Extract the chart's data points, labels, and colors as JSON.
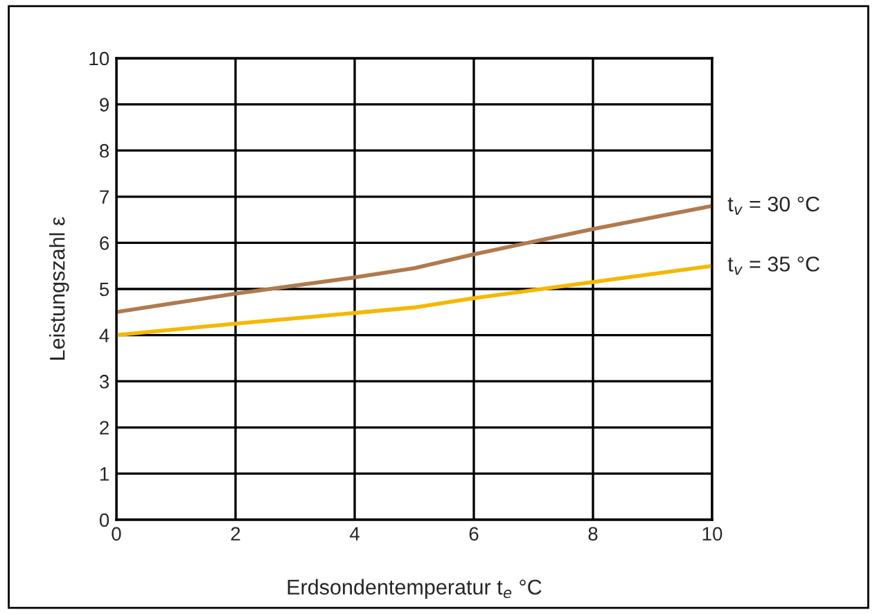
{
  "chart_data": {
    "type": "line",
    "xlabel": "Erdsondentemperatur t$_{e}$ °C",
    "ylabel": "Leistungszahl ε",
    "x": [
      0,
      2,
      4,
      5,
      6,
      8,
      10
    ],
    "series": [
      {
        "name": "t$_{v}$ = 30 °C",
        "color": "#b07a4f",
        "values": [
          4.5,
          4.9,
          5.25,
          5.45,
          5.75,
          6.3,
          6.8
        ]
      },
      {
        "name": "t$_{v}$ = 35 °C",
        "color": "#f5b800",
        "values": [
          4.0,
          4.25,
          4.48,
          4.6,
          4.8,
          5.15,
          5.5
        ]
      }
    ],
    "xlim": [
      0,
      10
    ],
    "ylim": [
      0,
      10
    ],
    "xticks": [
      0,
      2,
      4,
      6,
      8,
      10
    ],
    "yticks": [
      0,
      1,
      2,
      3,
      4,
      5,
      6,
      7,
      8,
      9,
      10
    ],
    "grid": true,
    "legend": false,
    "marker": "none",
    "line_style": "solid"
  }
}
